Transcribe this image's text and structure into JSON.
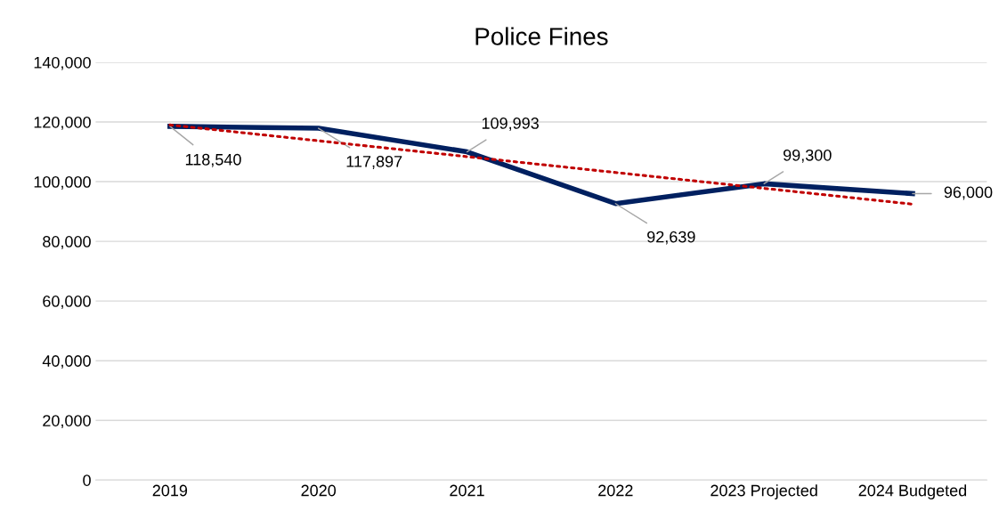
{
  "chart_data": {
    "type": "line",
    "title": "Police Fines",
    "categories": [
      "2019",
      "2020",
      "2021",
      "2022",
      "2023 Projected",
      "2024 Budgeted"
    ],
    "series": [
      {
        "color": "#002060",
        "values": [
          118540,
          117897,
          109993,
          92639,
          99300,
          96000
        ],
        "value_labels": [
          "118,540",
          "117,897",
          "109,993",
          "92,639",
          "99,300",
          "96,000"
        ]
      },
      {
        "color": "#c00000",
        "line_style": "dotted",
        "values": [
          119003,
          113693,
          108383,
          103073,
          97763,
          92453
        ]
      }
    ],
    "ylim": [
      0,
      140000
    ],
    "yticks": [
      {
        "value": 0,
        "label": "0"
      },
      {
        "value": 20000,
        "label": "20,000"
      },
      {
        "value": 40000,
        "label": "40,000"
      },
      {
        "value": 60000,
        "label": "60,000"
      },
      {
        "value": 80000,
        "label": "80,000"
      },
      {
        "value": 100000,
        "label": "100,000"
      },
      {
        "value": 120000,
        "label": "120,000"
      },
      {
        "value": 140000,
        "label": "140,000"
      }
    ],
    "grid": "y",
    "legend": false,
    "marker": "none"
  }
}
